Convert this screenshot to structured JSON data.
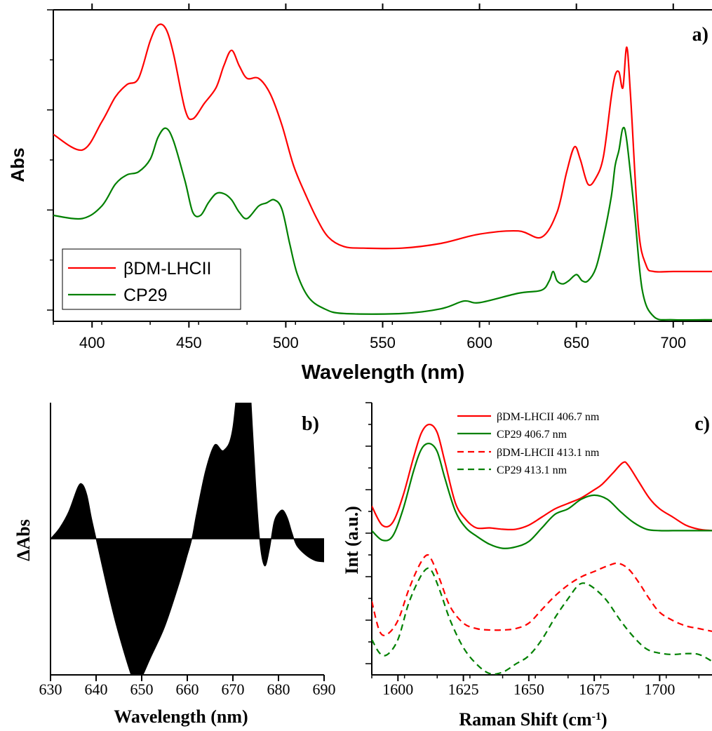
{
  "chart_data": [
    {
      "panel": "a)",
      "type": "line",
      "xlabel": "Wavelength (nm)",
      "ylabel": "Abs",
      "xlim": [
        380,
        720
      ],
      "ylim": [
        0,
        100
      ],
      "xticks": [
        400,
        450,
        500,
        550,
        600,
        650,
        700
      ],
      "y_tick_labels": "none",
      "grid": false,
      "legend": "bottom-left",
      "series": [
        {
          "name": "βDM-LHCII",
          "color": "#ff0000",
          "dash": "solid",
          "x": [
            380,
            395,
            405,
            412,
            418,
            424,
            430,
            434,
            438,
            442,
            448,
            452,
            458,
            464,
            468,
            472,
            476,
            480,
            486,
            492,
            498,
            504,
            510,
            516,
            522,
            530,
            540,
            560,
            580,
            600,
            620,
            632,
            640,
            645,
            649,
            652,
            656,
            660,
            664,
            668,
            670,
            672,
            674,
            676,
            678,
            682,
            686,
            690,
            700,
            720
          ],
          "y": [
            60,
            55,
            64,
            72,
            76,
            78,
            90,
            95,
            94,
            86,
            68,
            65,
            70,
            75,
            82,
            87,
            82,
            78,
            78,
            73,
            63,
            50,
            41,
            33,
            27,
            24,
            23.5,
            23.5,
            25,
            28,
            29,
            27,
            35,
            48,
            56,
            52,
            44,
            46,
            53,
            72,
            79,
            80,
            75,
            88,
            72,
            30,
            18,
            16,
            16,
            16
          ]
        },
        {
          "name": "CP29",
          "color": "#008000",
          "dash": "solid",
          "x": [
            380,
            395,
            405,
            412,
            418,
            424,
            430,
            434,
            438,
            442,
            448,
            452,
            456,
            460,
            464,
            468,
            472,
            476,
            480,
            486,
            490,
            494,
            498,
            502,
            506,
            512,
            520,
            530,
            560,
            580,
            592,
            600,
            620,
            632,
            636,
            638,
            640,
            643,
            646,
            650,
            653,
            656,
            660,
            664,
            668,
            670,
            672,
            674,
            676,
            680,
            684,
            690,
            700,
            720
          ],
          "y": [
            34,
            33,
            37,
            44,
            47,
            48,
            52,
            59,
            62,
            58,
            45,
            35,
            34,
            38,
            41,
            41,
            39,
            35,
            33,
            37,
            38,
            39,
            36,
            25,
            15,
            7.5,
            4,
            2.5,
            2.5,
            4,
            6.5,
            6,
            9,
            10,
            13,
            16,
            13,
            12,
            13,
            15,
            13,
            13,
            17,
            27,
            40,
            50,
            55,
            62,
            58,
            35,
            10,
            1.5,
            0.5,
            0.5
          ]
        }
      ]
    },
    {
      "panel": "b)",
      "type": "area",
      "xlabel": "Wavelength (nm)",
      "ylabel": "ΔAbs",
      "xlim": [
        630,
        690
      ],
      "ylim": [
        -10,
        10
      ],
      "xticks": [
        630,
        640,
        650,
        660,
        670,
        680,
        690
      ],
      "y_tick_labels": "none",
      "grid": false,
      "series": [
        {
          "name": "",
          "color": "#000000",
          "x": [
            630,
            632,
            634,
            636,
            637,
            638,
            639,
            640,
            642,
            644,
            646,
            648,
            649,
            650,
            652,
            655,
            658,
            660,
            661,
            662,
            664,
            666,
            668,
            670,
            672,
            673,
            674,
            675,
            676,
            677,
            678,
            679,
            680,
            681,
            682,
            683,
            684,
            686,
            688,
            690
          ],
          "y": [
            0,
            0.8,
            2,
            3.8,
            4,
            3.2,
            1.5,
            0,
            -3,
            -5.8,
            -8.2,
            -10.3,
            -10.7,
            -10.2,
            -8.7,
            -6.5,
            -3.5,
            -1.2,
            0,
            1.8,
            5,
            6.9,
            6.5,
            8.2,
            15,
            16.2,
            10,
            4,
            -0.5,
            -2,
            -0.8,
            1.2,
            1.9,
            2.1,
            1.5,
            0.4,
            -0.5,
            -1.2,
            -1.6,
            -1.7
          ]
        }
      ]
    },
    {
      "panel": "c)",
      "type": "line",
      "xlabel": "Raman Shift (cm",
      "xlabel_sup": "-1",
      "xlabel_close": ")",
      "ylabel": "Int (a.u.)",
      "xlim": [
        1590,
        1720
      ],
      "ylim": [
        0,
        100
      ],
      "xticks": [
        1600,
        1625,
        1650,
        1675,
        1700
      ],
      "y_tick_labels": "none",
      "grid": false,
      "legend": "top-right",
      "series": [
        {
          "name": "βDM-LHCII 406.7 nm",
          "color": "#ff0000",
          "dash": "solid",
          "x": [
            1590,
            1594,
            1598,
            1602,
            1606,
            1609,
            1612,
            1615,
            1618,
            1622,
            1626,
            1630,
            1635,
            1640,
            1645,
            1650,
            1655,
            1660,
            1665,
            1670,
            1675,
            1678,
            1682,
            1686,
            1688,
            1692,
            1696,
            1700,
            1705,
            1710,
            1715,
            1720
          ],
          "y": [
            62,
            55,
            56,
            66,
            80,
            89,
            92,
            89,
            78,
            63,
            57,
            54,
            54,
            53.5,
            53.5,
            55,
            58,
            61,
            63,
            65,
            68,
            70,
            74,
            78,
            77,
            71,
            65,
            61,
            58,
            55,
            53.5,
            53
          ]
        },
        {
          "name": "CP29 406.7 nm",
          "color": "#008000",
          "dash": "solid",
          "x": [
            1590,
            1594,
            1598,
            1602,
            1606,
            1609,
            1612,
            1615,
            1618,
            1622,
            1626,
            1630,
            1635,
            1640,
            1645,
            1650,
            1655,
            1660,
            1665,
            1670,
            1675,
            1680,
            1685,
            1690,
            1695,
            1700,
            1705,
            1710,
            1720
          ],
          "y": [
            53,
            49.5,
            51,
            61,
            75,
            83,
            85,
            82,
            72,
            60,
            54,
            51,
            48,
            46.5,
            47,
            49,
            54,
            59,
            61,
            64.5,
            66,
            64.5,
            60,
            56,
            53.5,
            53,
            53,
            53,
            53
          ]
        },
        {
          "name": "βDM-LHCII 413.1 nm",
          "color": "#ff0000",
          "dash": "dashed",
          "x": [
            1590,
            1593,
            1596,
            1600,
            1604,
            1608,
            1611,
            1613,
            1616,
            1620,
            1625,
            1630,
            1635,
            1640,
            1645,
            1650,
            1655,
            1660,
            1665,
            1670,
            1675,
            1680,
            1684,
            1688,
            1692,
            1696,
            1700,
            1705,
            1710,
            1715,
            1720
          ],
          "y": [
            27,
            16,
            15,
            20,
            31,
            40,
            44,
            42,
            35,
            25,
            19,
            17,
            16.5,
            16.5,
            17,
            19,
            24,
            29,
            33,
            36,
            38,
            40,
            41,
            39,
            34,
            28,
            23,
            20,
            18,
            17,
            16
          ]
        },
        {
          "name": "CP29 413.1 nm",
          "color": "#008000",
          "dash": "dashed",
          "x": [
            1590,
            1593,
            1596,
            1600,
            1604,
            1608,
            1611,
            1613,
            1616,
            1620,
            1625,
            1630,
            1635,
            1640,
            1645,
            1650,
            1655,
            1660,
            1665,
            1669,
            1672,
            1676,
            1680,
            1685,
            1690,
            1695,
            1700,
            1705,
            1710,
            1715,
            1720
          ],
          "y": [
            13,
            8,
            7.5,
            13,
            26,
            35,
            39,
            38,
            31,
            20,
            10,
            4,
            0.5,
            1,
            4,
            7,
            13,
            21,
            28,
            33,
            33.5,
            31,
            27,
            20,
            14,
            9.5,
            8,
            7.5,
            7.8,
            7.5,
            5
          ]
        }
      ]
    }
  ]
}
